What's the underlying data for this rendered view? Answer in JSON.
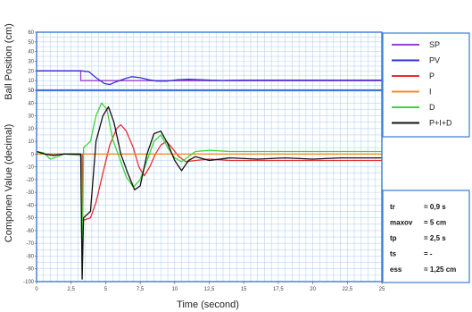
{
  "chart_data": [
    {
      "type": "line",
      "ylabel": "Ball Position (cm)",
      "ylim": [
        0,
        60
      ],
      "yticks": [
        0,
        10,
        20,
        30,
        40,
        50,
        60
      ],
      "xlim": [
        0,
        25
      ],
      "grid": true,
      "series": [
        {
          "name": "SP",
          "color": "#9a3fd0",
          "points": [
            [
              0,
              20
            ],
            [
              3.2,
              20
            ],
            [
              3.2,
              10
            ],
            [
              25,
              10
            ]
          ]
        },
        {
          "name": "PV",
          "color": "#2f2fd8",
          "points": [
            [
              0,
              20
            ],
            [
              3.3,
              20
            ],
            [
              3.8,
              19
            ],
            [
              4.3,
              13
            ],
            [
              4.9,
              7
            ],
            [
              5.3,
              6
            ],
            [
              5.8,
              9
            ],
            [
              6.4,
              12
            ],
            [
              6.9,
              14
            ],
            [
              7.5,
              13
            ],
            [
              8.1,
              11
            ],
            [
              8.7,
              9.5
            ],
            [
              9.4,
              9.5
            ],
            [
              10.2,
              10.8
            ],
            [
              11,
              11.4
            ],
            [
              11.8,
              11
            ],
            [
              12.6,
              10.4
            ],
            [
              13.5,
              10.2
            ],
            [
              15,
              10.5
            ],
            [
              25,
              10.5
            ]
          ]
        }
      ]
    },
    {
      "type": "line",
      "ylabel": "Componen Value (decimal)",
      "ylim": [
        -100,
        50
      ],
      "yticks": [
        50,
        40,
        30,
        20,
        10,
        0,
        -10,
        -20,
        -30,
        -40,
        -50,
        -60,
        -70,
        -80,
        -90,
        -100
      ],
      "xlim": [
        0,
        25
      ],
      "xticks": [
        "0",
        "2,5",
        "5",
        "7,5",
        "10",
        "12,5",
        "15",
        "17,5",
        "20",
        "22,5",
        "25"
      ],
      "xlabel": "Time (second)",
      "grid": true,
      "series": [
        {
          "name": "P",
          "color": "#e53030",
          "points": [
            [
              0,
              0
            ],
            [
              3.3,
              0
            ],
            [
              3.35,
              -52
            ],
            [
              3.9,
              -50
            ],
            [
              4.3,
              -38
            ],
            [
              4.8,
              -15
            ],
            [
              5.3,
              7
            ],
            [
              5.8,
              20
            ],
            [
              6.1,
              23
            ],
            [
              6.5,
              18
            ],
            [
              7,
              5
            ],
            [
              7.4,
              -10
            ],
            [
              7.8,
              -17
            ],
            [
              8.2,
              -10
            ],
            [
              8.6,
              0
            ],
            [
              9,
              7
            ],
            [
              9.4,
              10
            ],
            [
              9.8,
              5
            ],
            [
              10.3,
              -2
            ],
            [
              10.8,
              -6
            ],
            [
              11.5,
              -5
            ],
            [
              12.5,
              -4
            ],
            [
              14,
              -5
            ],
            [
              25,
              -5
            ]
          ]
        },
        {
          "name": "I",
          "color": "#f08a30",
          "points": [
            [
              0,
              0
            ],
            [
              25,
              0
            ]
          ]
        },
        {
          "name": "D",
          "color": "#3ad63a",
          "points": [
            [
              0,
              2
            ],
            [
              0.5,
              1
            ],
            [
              1,
              -4
            ],
            [
              1.5,
              -2
            ],
            [
              2,
              0
            ],
            [
              3.2,
              -1
            ],
            [
              3.3,
              -98
            ],
            [
              3.4,
              5
            ],
            [
              3.9,
              10
            ],
            [
              4.3,
              30
            ],
            [
              4.7,
              40
            ],
            [
              5.1,
              35
            ],
            [
              5.5,
              12
            ],
            [
              6,
              -3
            ],
            [
              6.5,
              -18
            ],
            [
              7,
              -26
            ],
            [
              7.5,
              -20
            ],
            [
              8,
              -5
            ],
            [
              8.5,
              10
            ],
            [
              9,
              15
            ],
            [
              9.5,
              5
            ],
            [
              10,
              -3
            ],
            [
              10.5,
              -6
            ],
            [
              11,
              -2
            ],
            [
              11.5,
              2
            ],
            [
              12.5,
              3
            ],
            [
              14,
              2
            ],
            [
              25,
              2
            ]
          ]
        },
        {
          "name": "P+I+D",
          "color": "#111111",
          "points": [
            [
              0,
              2
            ],
            [
              0.6,
              0
            ],
            [
              1.2,
              -1
            ],
            [
              2,
              0
            ],
            [
              3.2,
              0
            ],
            [
              3.3,
              -98
            ],
            [
              3.4,
              -50
            ],
            [
              3.9,
              -45
            ],
            [
              4.3,
              10
            ],
            [
              4.8,
              30
            ],
            [
              5.2,
              37
            ],
            [
              5.6,
              25
            ],
            [
              6.1,
              0
            ],
            [
              6.6,
              -15
            ],
            [
              7.1,
              -28
            ],
            [
              7.5,
              -25
            ],
            [
              8,
              0
            ],
            [
              8.5,
              16
            ],
            [
              9,
              18
            ],
            [
              9.5,
              8
            ],
            [
              10,
              -5
            ],
            [
              10.5,
              -13
            ],
            [
              11,
              -5
            ],
            [
              11.5,
              -2
            ],
            [
              12.5,
              -5
            ],
            [
              14,
              -3
            ],
            [
              16,
              -4
            ],
            [
              18,
              -3
            ],
            [
              20,
              -4
            ],
            [
              22,
              -3
            ],
            [
              25,
              -3
            ]
          ]
        }
      ]
    }
  ],
  "legend": [
    {
      "label": "SP",
      "color": "#9a3fd0"
    },
    {
      "label": "PV",
      "color": "#2f2fd8"
    },
    {
      "label": "P",
      "color": "#e53030"
    },
    {
      "label": "I",
      "color": "#f08a30"
    },
    {
      "label": "D",
      "color": "#3ad63a"
    },
    {
      "label": "P+I+D",
      "color": "#111111"
    }
  ],
  "metrics": [
    {
      "label": "tr",
      "value": "= 0,9 s"
    },
    {
      "label": "maxov",
      "value": "= 5 cm"
    },
    {
      "label": "tp",
      "value": "= 2,5 s"
    },
    {
      "label": "ts",
      "value": "= -"
    },
    {
      "label": "ess",
      "value": "= 1,25 cm"
    }
  ],
  "colors": {
    "frame": "#3a7bd5",
    "grid": "#b8d3f5"
  }
}
